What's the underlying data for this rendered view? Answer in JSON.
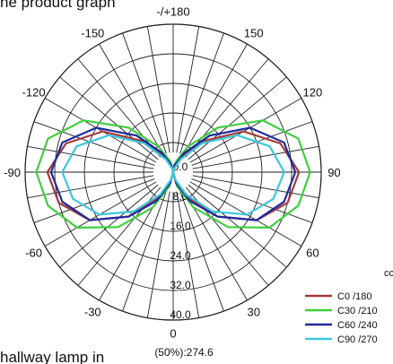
{
  "header_text": "he product graph",
  "footer_text": "hallway lamp in",
  "chart_data": {
    "type": "polar",
    "annotation": "(50%):274.6",
    "legend_title": "cc",
    "theta": [
      -180,
      -165,
      -150,
      -135,
      -120,
      -105,
      -90,
      -75,
      -60,
      -45,
      -30,
      -15,
      0,
      15,
      30,
      45,
      60,
      75,
      90,
      105,
      120,
      135,
      150,
      165,
      180
    ],
    "series": [
      {
        "name": "C0 /180",
        "color": "#a23a3c",
        "values": [
          0,
          2,
          5,
          12,
          22,
          30,
          34,
          32,
          26,
          17,
          8,
          3,
          0,
          3,
          8,
          17,
          26,
          32,
          34,
          30,
          22,
          12,
          5,
          2,
          0
        ]
      },
      {
        "name": "C30 /210",
        "color": "#3fcf3f",
        "values": [
          0,
          3,
          8,
          17,
          28,
          35,
          37,
          35,
          30,
          21,
          11,
          4,
          0,
          4,
          11,
          21,
          30,
          35,
          37,
          35,
          28,
          17,
          8,
          3,
          0
        ]
      },
      {
        "name": "C60 /240",
        "color": "#1f2a9c",
        "values": [
          0,
          2,
          6,
          14,
          24,
          31,
          33,
          31,
          26,
          17,
          9,
          3,
          0,
          3,
          9,
          17,
          26,
          31,
          33,
          31,
          24,
          14,
          6,
          2,
          0
        ]
      },
      {
        "name": "C90 /270",
        "color": "#3ec6dc",
        "values": [
          0,
          1,
          4,
          11,
          20,
          27,
          30,
          28,
          23,
          15,
          7,
          2,
          0,
          2,
          7,
          15,
          23,
          28,
          30,
          27,
          20,
          11,
          4,
          1,
          0
        ]
      }
    ],
    "rlim": [
      0,
      40
    ],
    "rticks": [
      {
        "value": 0,
        "label": "0.0"
      },
      {
        "value": 8,
        "label": "8.0"
      },
      {
        "value": 16,
        "label": "16.0"
      },
      {
        "value": 24,
        "label": "24.0"
      },
      {
        "value": 32,
        "label": "32.0"
      },
      {
        "value": 40,
        "label": "40.0"
      }
    ],
    "thetaticks": [
      {
        "value": 180,
        "label": "-/+180"
      },
      -150,
      150,
      -120,
      120,
      -90,
      90,
      -60,
      60,
      -30,
      30,
      0
    ],
    "grid": true
  }
}
